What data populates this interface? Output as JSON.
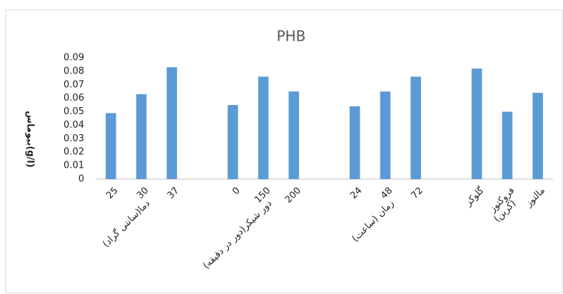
{
  "chart_data": {
    "type": "bar",
    "title": "PHB",
    "ylabel": "بیوماس(g/l)",
    "color": "#5b9bd5",
    "groups": [
      {
        "label": "دما(سانتی گراد)",
        "categories": [
          "25",
          "30",
          "37"
        ],
        "values": [
          0.049,
          0.063,
          0.083
        ]
      },
      {
        "label": "دور شیکر(دور در دقیقه)",
        "categories": [
          "0",
          "150",
          "200"
        ],
        "values": [
          0.055,
          0.076,
          0.065
        ]
      },
      {
        "label": "زمان (ساعت)",
        "categories": [
          "24",
          "48",
          "72"
        ],
        "values": [
          0.054,
          0.065,
          0.076
        ]
      },
      {
        "label": "(کربن)",
        "categories": [
          "گلوکز",
          "فروکتوز",
          "مالتوز"
        ],
        "values": [
          0.082,
          0.05,
          0.064
        ]
      }
    ],
    "ylim": [
      0,
      0.09
    ],
    "yticks": [
      0,
      0.01,
      0.02,
      0.03,
      0.04,
      0.05,
      0.06,
      0.07,
      0.08,
      0.09
    ],
    "grid": false
  }
}
